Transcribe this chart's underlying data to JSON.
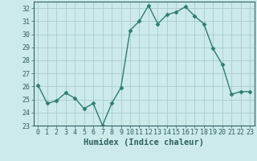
{
  "x": [
    0,
    1,
    2,
    3,
    4,
    5,
    6,
    7,
    8,
    9,
    10,
    11,
    12,
    13,
    14,
    15,
    16,
    17,
    18,
    19,
    20,
    21,
    22,
    23
  ],
  "y": [
    26.1,
    24.7,
    24.9,
    25.5,
    25.1,
    24.3,
    24.7,
    23.0,
    24.7,
    25.9,
    30.3,
    31.0,
    32.2,
    30.8,
    31.5,
    31.7,
    32.1,
    31.4,
    30.8,
    28.9,
    27.7,
    25.4,
    25.6,
    25.6
  ],
  "line_color": "#2e7d6e",
  "marker": "D",
  "markersize": 2.5,
  "linewidth": 1.0,
  "bg_color": "#cceaea",
  "grid_color": "#aacccc",
  "xlabel": "Humidex (Indice chaleur)",
  "ylim": [
    23,
    32.5
  ],
  "xlim": [
    -0.5,
    23.5
  ],
  "yticks": [
    23,
    24,
    25,
    26,
    27,
    28,
    29,
    30,
    31,
    32
  ],
  "xticks": [
    0,
    1,
    2,
    3,
    4,
    5,
    6,
    7,
    8,
    9,
    10,
    11,
    12,
    13,
    14,
    15,
    16,
    17,
    18,
    19,
    20,
    21,
    22,
    23
  ],
  "tick_color": "#2e6060",
  "label_fontsize": 7.5,
  "tick_fontsize": 6.0,
  "spine_color": "#2e6060"
}
